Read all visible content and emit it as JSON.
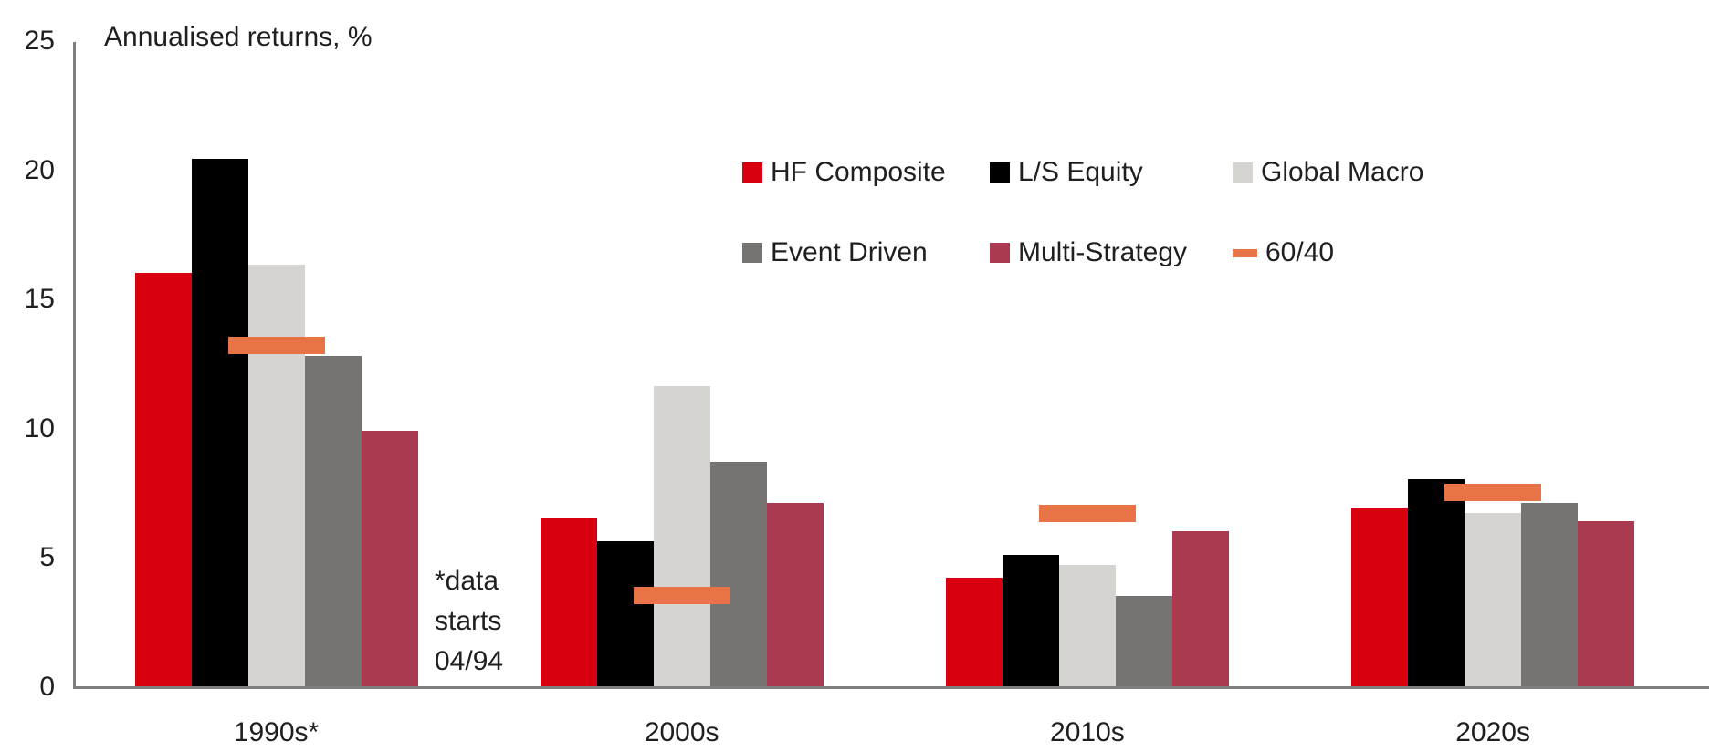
{
  "chart_data": {
    "type": "bar",
    "title": "Annualised returns, %",
    "categories": [
      "1990s*",
      "2000s",
      "2010s",
      "2020s"
    ],
    "series": [
      {
        "name": "HF Composite",
        "color": "#d8000f",
        "marker": "square",
        "values": [
          16.0,
          6.5,
          4.2,
          6.9
        ]
      },
      {
        "name": "L/S Equity",
        "color": "#000000",
        "marker": "square",
        "values": [
          20.4,
          5.6,
          5.1,
          8.0
        ]
      },
      {
        "name": "Global Macro",
        "color": "#d6d4d1",
        "marker": "square",
        "values": [
          16.3,
          11.6,
          4.7,
          6.7
        ]
      },
      {
        "name": "Event Driven",
        "color": "#767473",
        "marker": "square",
        "values": [
          12.8,
          8.7,
          3.5,
          7.1
        ]
      },
      {
        "name": "Multi-Strategy",
        "color": "#a93a50",
        "marker": "square",
        "values": [
          9.9,
          7.1,
          6.0,
          6.4
        ]
      },
      {
        "name": "60/40",
        "color": "#e87347",
        "marker": "dash",
        "values": [
          13.2,
          3.5,
          6.7,
          7.5
        ]
      }
    ],
    "ylim": [
      0,
      25
    ],
    "yticks": [
      0,
      5,
      10,
      15,
      20,
      25
    ],
    "grid": false,
    "legend_position": "top-center-right, two rows",
    "annotation": {
      "lines": [
        "*data",
        "starts",
        "04/94"
      ]
    },
    "axis_color": "#7f7f7f",
    "text_color": "#1f1f1f"
  }
}
